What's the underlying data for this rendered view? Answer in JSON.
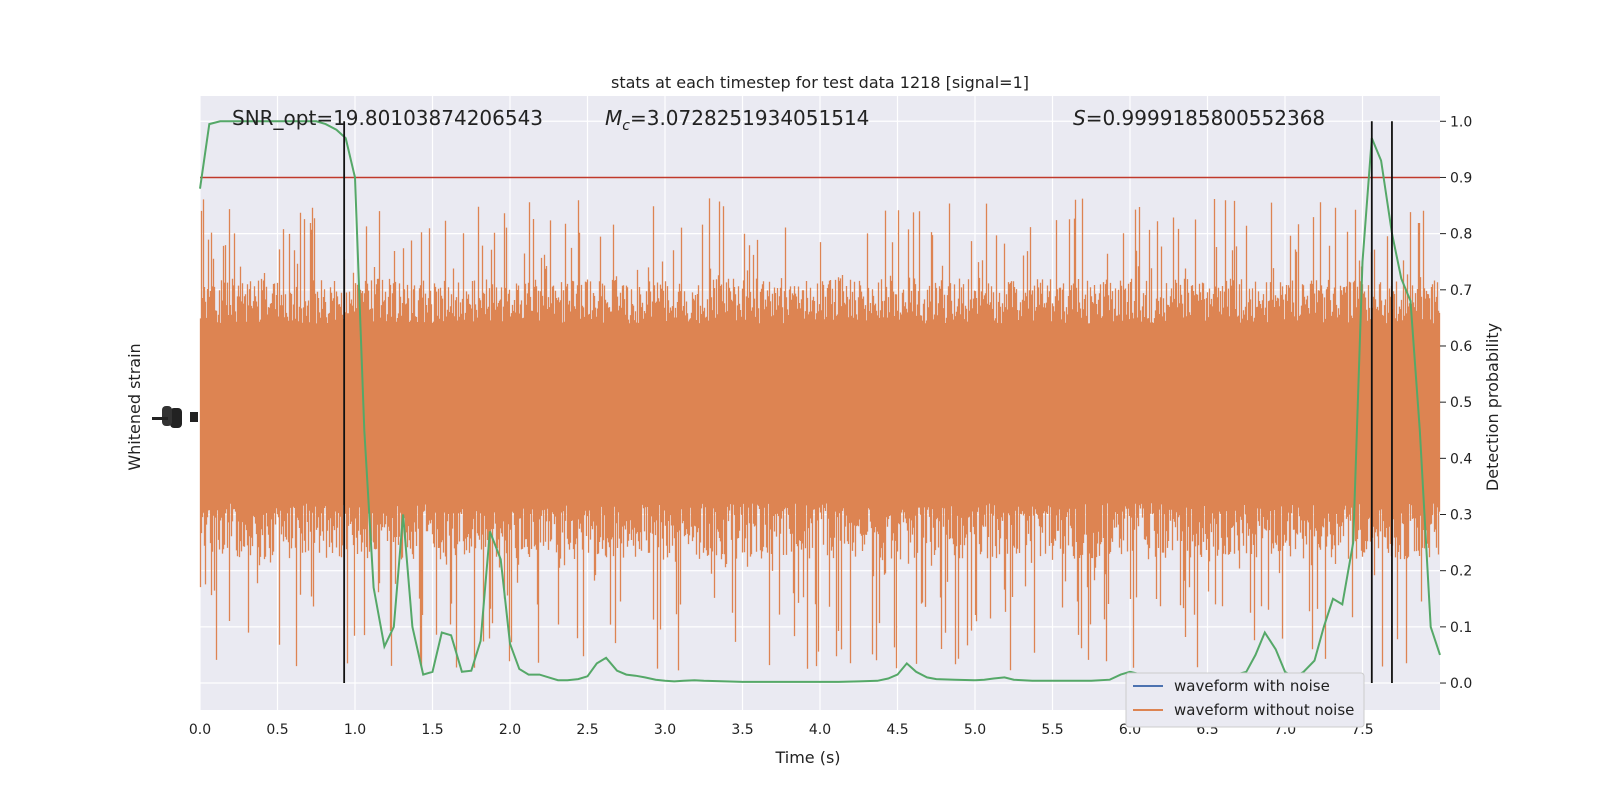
{
  "chart_data": {
    "type": "line",
    "title": "stats at each timestep for test data 1218 [signal=1]",
    "xlabel": "Time (s)",
    "ylabel_left": "Whitened strain",
    "ylabel_right": "Detection probability",
    "xlim": [
      0,
      8
    ],
    "ylim_right": [
      -0.048,
      1.045
    ],
    "grid": true,
    "legend_placement": "lower-right",
    "x_ticks": [
      "0.0",
      "0.5",
      "1.0",
      "1.5",
      "2.0",
      "2.5",
      "3.0",
      "3.5",
      "4.0",
      "4.5",
      "5.0",
      "5.5",
      "6.0",
      "6.5",
      "7.0",
      "7.5"
    ],
    "y_right_ticks": [
      "0.0",
      "0.1",
      "0.2",
      "0.3",
      "0.4",
      "0.5",
      "0.6",
      "0.7",
      "0.8",
      "0.9",
      "1.0"
    ],
    "annotations": {
      "snr": "SNR_opt=19.80103874206543",
      "mc_prefix": "M",
      "mc_sub": "c",
      "mc_value": "=3.0728251934051514",
      "s_prefix": "S",
      "s_value": "=0.9999185800552368"
    },
    "threshold": {
      "y": 0.9,
      "color": "#c0392b"
    },
    "vertical_markers": [
      0.93,
      7.56,
      7.69
    ],
    "series": [
      {
        "name": "waveform with noise",
        "color": "#4c72b0",
        "visible_in_plot": false
      },
      {
        "name": "waveform without noise",
        "color": "#dd8452",
        "strain_range": {
          "base_low": 0.22,
          "base_high": 0.72,
          "peak_low": 0.0,
          "peak_high": 0.9,
          "center": 0.46
        }
      },
      {
        "name": "detection_probability",
        "color": "#55a868",
        "x": [
          0.0,
          0.06,
          0.13,
          0.19,
          0.25,
          0.31,
          0.38,
          0.44,
          0.5,
          0.56,
          0.63,
          0.69,
          0.75,
          0.81,
          0.88,
          0.94,
          1.0,
          1.06,
          1.12,
          1.19,
          1.25,
          1.31,
          1.37,
          1.44,
          1.5,
          1.56,
          1.62,
          1.69,
          1.75,
          1.81,
          1.87,
          1.94,
          2.0,
          2.06,
          2.12,
          2.19,
          2.25,
          2.31,
          2.37,
          2.44,
          2.5,
          2.56,
          2.62,
          2.69,
          2.75,
          2.81,
          2.87,
          2.94,
          3.0,
          3.06,
          3.12,
          3.19,
          3.25,
          3.5,
          3.75,
          4.0,
          4.12,
          4.25,
          4.37,
          4.44,
          4.5,
          4.56,
          4.62,
          4.69,
          4.75,
          4.87,
          5.0,
          5.06,
          5.12,
          5.19,
          5.25,
          5.37,
          5.5,
          5.62,
          5.75,
          5.87,
          5.94,
          6.0,
          6.12,
          6.25,
          6.37,
          6.5,
          6.62,
          6.75,
          6.81,
          6.87,
          6.94,
          7.0,
          7.06,
          7.12,
          7.19,
          7.25,
          7.31,
          7.37,
          7.44,
          7.5,
          7.56,
          7.62,
          7.69,
          7.75,
          7.81,
          7.87,
          7.94,
          8.0
        ],
        "y": [
          0.88,
          0.995,
          1.0,
          1.0,
          1.0,
          1.0,
          1.0,
          1.0,
          1.0,
          1.0,
          1.0,
          1.0,
          1.0,
          0.995,
          0.985,
          0.97,
          0.9,
          0.45,
          0.17,
          0.065,
          0.1,
          0.3,
          0.1,
          0.015,
          0.02,
          0.09,
          0.085,
          0.02,
          0.022,
          0.075,
          0.27,
          0.22,
          0.07,
          0.025,
          0.015,
          0.015,
          0.01,
          0.005,
          0.005,
          0.007,
          0.012,
          0.035,
          0.045,
          0.022,
          0.015,
          0.013,
          0.01,
          0.006,
          0.004,
          0.003,
          0.004,
          0.005,
          0.004,
          0.002,
          0.002,
          0.002,
          0.002,
          0.003,
          0.004,
          0.008,
          0.015,
          0.035,
          0.02,
          0.01,
          0.007,
          0.006,
          0.005,
          0.006,
          0.008,
          0.01,
          0.006,
          0.004,
          0.004,
          0.004,
          0.004,
          0.006,
          0.015,
          0.02,
          0.012,
          0.008,
          0.006,
          0.01,
          0.01,
          0.02,
          0.05,
          0.09,
          0.06,
          0.02,
          0.01,
          0.02,
          0.04,
          0.1,
          0.15,
          0.14,
          0.25,
          0.75,
          0.97,
          0.93,
          0.8,
          0.72,
          0.68,
          0.45,
          0.1,
          0.05
        ]
      }
    ]
  }
}
